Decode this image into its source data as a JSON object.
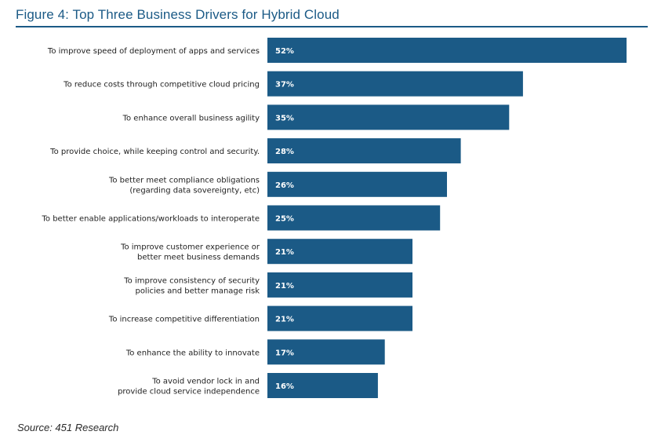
{
  "title": "Figure 4: Top Three Business Drivers for Hybrid Cloud",
  "source": "Source: 451 Research",
  "colors": {
    "bar": "#1b5a86",
    "title": "#1b5a86",
    "value_text": "#ffffff",
    "label_text": "#1f1f1f"
  },
  "chart_data": {
    "type": "bar",
    "orientation": "horizontal",
    "categories": [
      [
        "To improve speed of deployment of apps and services"
      ],
      [
        "To reduce costs through competitive cloud pricing"
      ],
      [
        "To enhance overall business agility"
      ],
      [
        "To provide choice, while keeping control and security."
      ],
      [
        "To better meet compliance obligations",
        "(regarding data sovereignty, etc)"
      ],
      [
        "To better enable applications/workloads to interoperate"
      ],
      [
        "To improve customer experience or",
        "better meet business demands"
      ],
      [
        "To improve consistency of security",
        "policies and better manage risk"
      ],
      [
        "To increase competitive differentiation"
      ],
      [
        "To enhance the ability to innovate"
      ],
      [
        "To avoid vendor lock in and",
        "provide cloud service independence"
      ]
    ],
    "values": [
      52,
      37,
      35,
      28,
      26,
      25,
      21,
      21,
      21,
      17,
      16
    ],
    "value_labels": [
      "52%",
      "37%",
      "35%",
      "28%",
      "26%",
      "25%",
      "21%",
      "21%",
      "21%",
      "17%",
      "16%"
    ],
    "unit": "%",
    "xlim": [
      0,
      52
    ],
    "grid": false,
    "legend": false
  }
}
